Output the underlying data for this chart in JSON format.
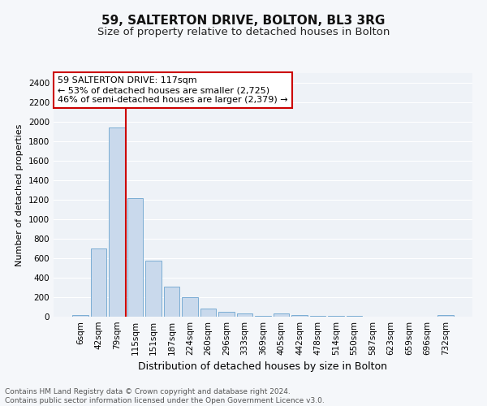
{
  "title1": "59, SALTERTON DRIVE, BOLTON, BL3 3RG",
  "title2": "Size of property relative to detached houses in Bolton",
  "xlabel": "Distribution of detached houses by size in Bolton",
  "ylabel": "Number of detached properties",
  "categories": [
    "6sqm",
    "42sqm",
    "79sqm",
    "115sqm",
    "151sqm",
    "187sqm",
    "224sqm",
    "260sqm",
    "296sqm",
    "333sqm",
    "369sqm",
    "405sqm",
    "442sqm",
    "478sqm",
    "514sqm",
    "550sqm",
    "587sqm",
    "623sqm",
    "659sqm",
    "696sqm",
    "732sqm"
  ],
  "values": [
    15,
    700,
    1940,
    1220,
    575,
    305,
    200,
    85,
    50,
    35,
    5,
    35,
    20,
    10,
    5,
    5,
    2,
    2,
    2,
    2,
    15
  ],
  "bar_color": "#c9d9ec",
  "bar_edge_color": "#7aadd4",
  "vline_color": "#cc0000",
  "vline_index": 2.5,
  "annotation_text": "59 SALTERTON DRIVE: 117sqm\n← 53% of detached houses are smaller (2,725)\n46% of semi-detached houses are larger (2,379) →",
  "annotation_box_facecolor": "#ffffff",
  "annotation_box_edgecolor": "#cc0000",
  "ylim": [
    0,
    2500
  ],
  "yticks": [
    0,
    200,
    400,
    600,
    800,
    1000,
    1200,
    1400,
    1600,
    1800,
    2000,
    2200,
    2400
  ],
  "bg_color": "#eef2f7",
  "grid_color": "#ffffff",
  "fig_facecolor": "#f5f7fa",
  "title1_fontsize": 11,
  "title2_fontsize": 9.5,
  "xlabel_fontsize": 9,
  "ylabel_fontsize": 8,
  "tick_fontsize": 7.5,
  "annot_fontsize": 8,
  "footer_fontsize": 6.5,
  "footer": "Contains HM Land Registry data © Crown copyright and database right 2024.\nContains public sector information licensed under the Open Government Licence v3.0."
}
